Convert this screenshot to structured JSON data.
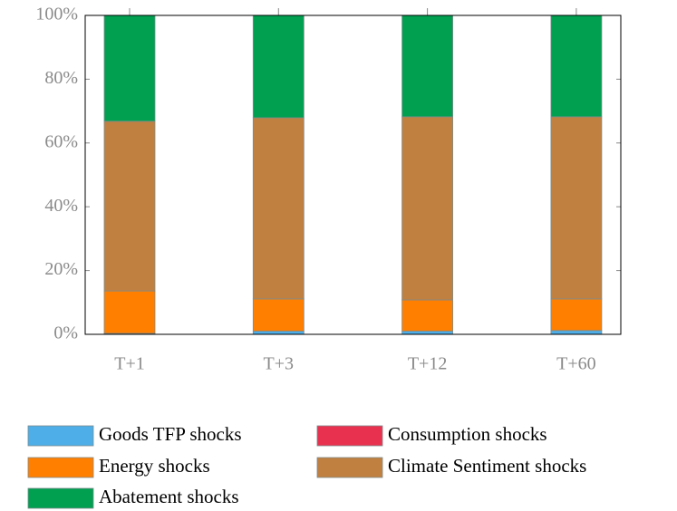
{
  "chart_data": {
    "type": "stacked_bar",
    "categories": [
      "T+1",
      "T+3",
      "T+12",
      "T+60"
    ],
    "series": [
      {
        "name": "Goods TFP shocks",
        "color": "#4daee8",
        "values": [
          0.3,
          1.0,
          1.0,
          1.2
        ]
      },
      {
        "name": "Consumption shocks",
        "color": "#e8314f",
        "values": [
          0,
          0,
          0,
          0
        ]
      },
      {
        "name": "Energy shocks",
        "color": "#ff7f00",
        "values": [
          13.3,
          10.1,
          9.8,
          9.9
        ]
      },
      {
        "name": "Climate Sentiment shocks",
        "color": "#c08040",
        "values": [
          53.2,
          56.8,
          57.4,
          57.1
        ]
      },
      {
        "name": "Abatement shocks",
        "color": "#00a050",
        "values": [
          33.2,
          32.1,
          31.8,
          31.8
        ]
      }
    ],
    "ylim": [
      0,
      100
    ],
    "yticks": [
      {
        "value": 0,
        "label": "0%"
      },
      {
        "value": 20,
        "label": "20%"
      },
      {
        "value": 40,
        "label": "40%"
      },
      {
        "value": 60,
        "label": "60%"
      },
      {
        "value": 80,
        "label": "80%"
      },
      {
        "value": 100,
        "label": "100%"
      }
    ],
    "grid": false
  }
}
